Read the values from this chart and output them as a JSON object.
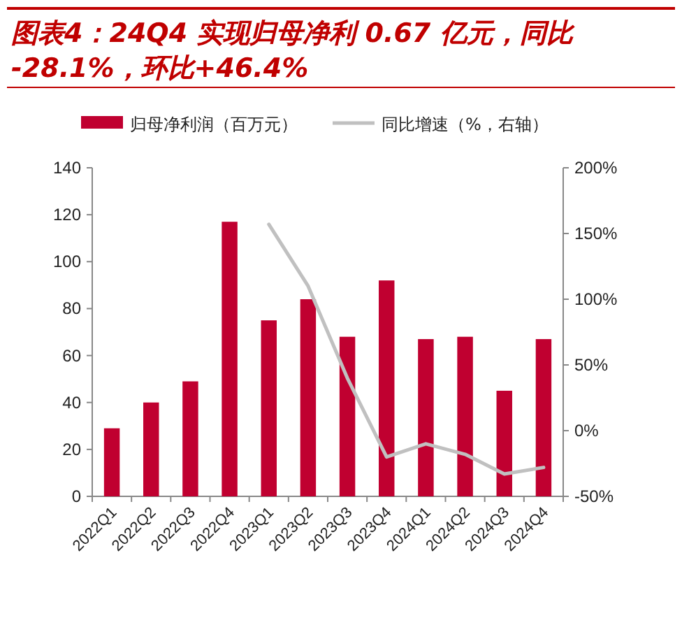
{
  "chart_data": {
    "type": "bar",
    "title": "图表4：24Q4 实现归母净利 0.67 亿元，同比-28.1%，环比+46.4%",
    "categories": [
      "2022Q1",
      "2022Q2",
      "2022Q3",
      "2022Q4",
      "2023Q1",
      "2023Q2",
      "2023Q3",
      "2023Q4",
      "2024Q1",
      "2024Q2",
      "2024Q3",
      "2024Q4"
    ],
    "series": [
      {
        "name": "归母净利润（百万元）",
        "color": "#c00030",
        "values": [
          29,
          40,
          49,
          117,
          75,
          84,
          68,
          92,
          67,
          68,
          45,
          67
        ]
      },
      {
        "name": "同比增速（%，右轴）",
        "type": "line",
        "axis": "y2",
        "color": "#c0c0c0",
        "values": [
          null,
          null,
          null,
          null,
          157,
          110,
          40,
          -20,
          -10,
          -18,
          -33,
          -28
        ]
      }
    ],
    "ylim": [
      0,
      140
    ],
    "yticks": [
      0,
      20,
      40,
      60,
      80,
      100,
      120,
      140
    ],
    "y2lim": [
      -50,
      200
    ],
    "y2ticks": [
      {
        "value": -50,
        "label": "-50%"
      },
      {
        "value": 0,
        "label": "0%"
      },
      {
        "value": 50,
        "label": "50%"
      },
      {
        "value": 100,
        "label": "100%"
      },
      {
        "value": 150,
        "label": "150%"
      },
      {
        "value": 200,
        "label": "200%"
      }
    ],
    "legend": "top",
    "grid": false
  }
}
